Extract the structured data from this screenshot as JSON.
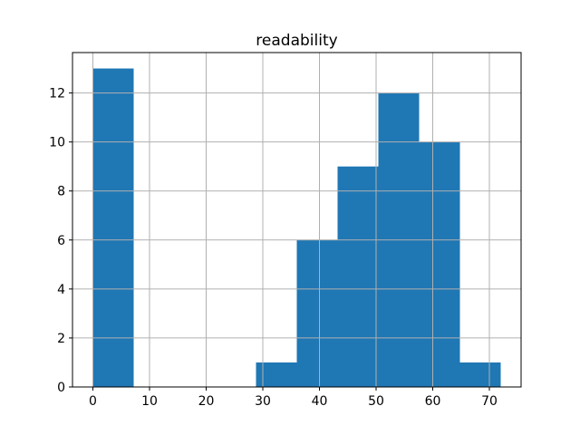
{
  "figure": {
    "background": "#ffffff"
  },
  "chart_data": {
    "type": "bar",
    "subtype": "histogram",
    "title": "readability",
    "xlabel": "",
    "ylabel": "",
    "bin_edges": [
      0,
      7.2,
      14.4,
      21.6,
      28.8,
      36.0,
      43.2,
      50.4,
      57.6,
      64.8,
      72.0
    ],
    "counts": [
      13,
      0,
      0,
      0,
      1,
      6,
      9,
      12,
      10,
      1
    ],
    "xticks": [
      0,
      10,
      20,
      30,
      40,
      50,
      60,
      70
    ],
    "yticks": [
      0,
      2,
      4,
      6,
      8,
      10,
      12
    ],
    "xlim": [
      -3.6,
      75.6
    ],
    "ylim": [
      0,
      13.65
    ],
    "grid": true,
    "grid_above_bars": true,
    "legend": false,
    "bar_color": "#1f77b4",
    "grid_color": "#b0b0b0",
    "axis_color": "#000000"
  }
}
